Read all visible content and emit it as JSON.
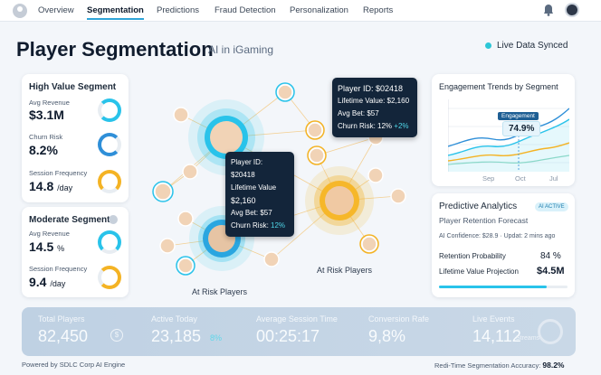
{
  "nav": {
    "tabs": [
      "Overview",
      "Segmentation",
      "Predictions",
      "Fraud Detection",
      "Personalization",
      "Reports"
    ]
  },
  "header": {
    "title": "Player Segmentation",
    "subtitle": "AI in iGaming",
    "sync": "Live Data Synced"
  },
  "high": {
    "title": "High Value Segment",
    "m1_label": "Avg Revenue",
    "m1_value": "$3.1M",
    "m2_label": "Churn Risk",
    "m2_value": "8.2%",
    "m3_label": "Session Frequency",
    "m3_value": "14.8",
    "m3_unit": "/day"
  },
  "moderate": {
    "title": "Moderate Segment",
    "m1_label": "Avg Revenue",
    "m1_value": "14.5",
    "m1_unit": "%",
    "m2_label": "Session Frequency",
    "m2_value": "9.4",
    "m2_unit": "/day"
  },
  "tip1": {
    "id": "Player ID: $02418",
    "ltv": "Lifetime Value: $2,160",
    "bet": "Avg Bet:  $57",
    "churn": "Churn Risk:  12%",
    "delta": "+2%"
  },
  "tip2": {
    "id": "Player ID: $20418",
    "ltv_label": "Lifetime Value",
    "ltv": "$2,160",
    "bet": "Avg Bet:  $57",
    "churn_label": "Churn Risk:",
    "churn": "12%"
  },
  "network": {
    "label_a": "At Risk Players",
    "label_b": "At Risk Players"
  },
  "engagement": {
    "title": "Engagement Trends by Segment",
    "tag": "Engagement",
    "value": "74.9%",
    "months": [
      "Sep",
      "Oct"
    ],
    "extra": "Jul"
  },
  "predictive": {
    "title": "Predictive Analytics",
    "badge": "AI ACTIVE",
    "subtitle": "Player Retention Forecast",
    "confidence": "AI Confidence: $28.9 · Updat: 2 mins ago",
    "r1_label": "Retention Probability",
    "r1_value": "84 %",
    "r2_label": "Lifetime Value Projection",
    "r2_value": "$4.5M"
  },
  "stats": [
    {
      "label": "Total Players",
      "value": "82,450",
      "extra": "$"
    },
    {
      "label": "Active Today",
      "value": "23,185",
      "extra": "8%"
    },
    {
      "label": "Average Session Time",
      "value": "00:25:17"
    },
    {
      "label": "Conversion Rafe",
      "value": "9,8%"
    },
    {
      "label": "Live Events",
      "value": "14,112",
      "extra": "Streams"
    }
  ],
  "footer": {
    "left": "Powered by SDLC Corp AI Engine",
    "right_label": "Redi-Time Segmentation Accuracy:",
    "right_value": "98.2%"
  },
  "colors": {
    "accent": "#2fa4d8",
    "cyan": "#29c3ea",
    "gold": "#f4b324"
  }
}
